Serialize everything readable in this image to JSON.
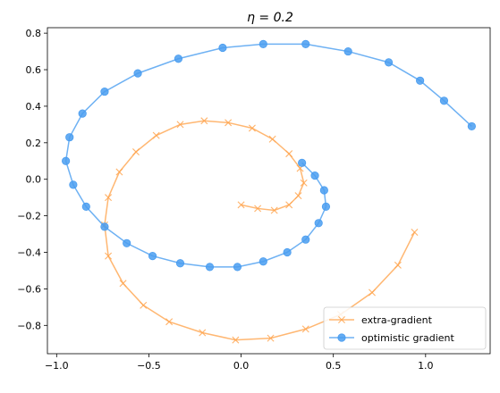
{
  "chart_data": {
    "type": "line",
    "title": "η = 0.2",
    "xlim": [
      -1.05,
      1.35
    ],
    "ylim": [
      -0.955,
      0.83
    ],
    "x_ticks": [
      -1.0,
      -0.5,
      0.0,
      0.5,
      1.0
    ],
    "x_tick_labels": [
      "−1.0",
      "−0.5",
      "0.0",
      "0.5",
      "1.0"
    ],
    "y_ticks": [
      -0.8,
      -0.6,
      -0.4,
      -0.2,
      0.0,
      0.2,
      0.4,
      0.6,
      0.8
    ],
    "y_tick_labels": [
      "−0.8",
      "−0.6",
      "−0.4",
      "−0.2",
      "0.0",
      "0.2",
      "0.4",
      "0.6",
      "0.8"
    ],
    "grid": false,
    "legend_position": "bottom-right",
    "colors": {
      "extra_gradient": "#ffa54f",
      "optimistic_gradient": "#4a9df0"
    },
    "series": [
      {
        "name": "extra-gradient",
        "marker": "x",
        "x": [
          0.94,
          0.85,
          0.71,
          0.54,
          0.35,
          0.16,
          -0.03,
          -0.21,
          -0.39,
          -0.53,
          -0.64,
          -0.72,
          -0.74,
          -0.72,
          -0.66,
          -0.57,
          -0.46,
          -0.33,
          -0.2,
          -0.07,
          0.06,
          0.17,
          0.26,
          0.32,
          0.34,
          0.31,
          0.26,
          0.18,
          0.09,
          0.0
        ],
        "y": [
          -0.29,
          -0.47,
          -0.62,
          -0.74,
          -0.82,
          -0.87,
          -0.88,
          -0.84,
          -0.78,
          -0.69,
          -0.57,
          -0.42,
          -0.25,
          -0.1,
          0.04,
          0.15,
          0.24,
          0.3,
          0.32,
          0.31,
          0.28,
          0.22,
          0.14,
          0.06,
          -0.02,
          -0.09,
          -0.14,
          -0.17,
          -0.16,
          -0.14
        ]
      },
      {
        "name": "optimistic gradient",
        "marker": "o",
        "x": [
          1.25,
          1.1,
          0.97,
          0.8,
          0.58,
          0.35,
          0.12,
          -0.1,
          -0.34,
          -0.56,
          -0.74,
          -0.86,
          -0.93,
          -0.95,
          -0.91,
          -0.84,
          -0.74,
          -0.62,
          -0.48,
          -0.33,
          -0.17,
          -0.02,
          0.12,
          0.25,
          0.35,
          0.42,
          0.46,
          0.45,
          0.4,
          0.33
        ],
        "y": [
          0.29,
          0.43,
          0.54,
          0.64,
          0.7,
          0.74,
          0.74,
          0.72,
          0.66,
          0.58,
          0.48,
          0.36,
          0.23,
          0.1,
          -0.03,
          -0.15,
          -0.26,
          -0.35,
          -0.42,
          -0.46,
          -0.48,
          -0.48,
          -0.45,
          -0.4,
          -0.33,
          -0.24,
          -0.15,
          -0.06,
          0.02,
          0.09
        ]
      }
    ]
  }
}
